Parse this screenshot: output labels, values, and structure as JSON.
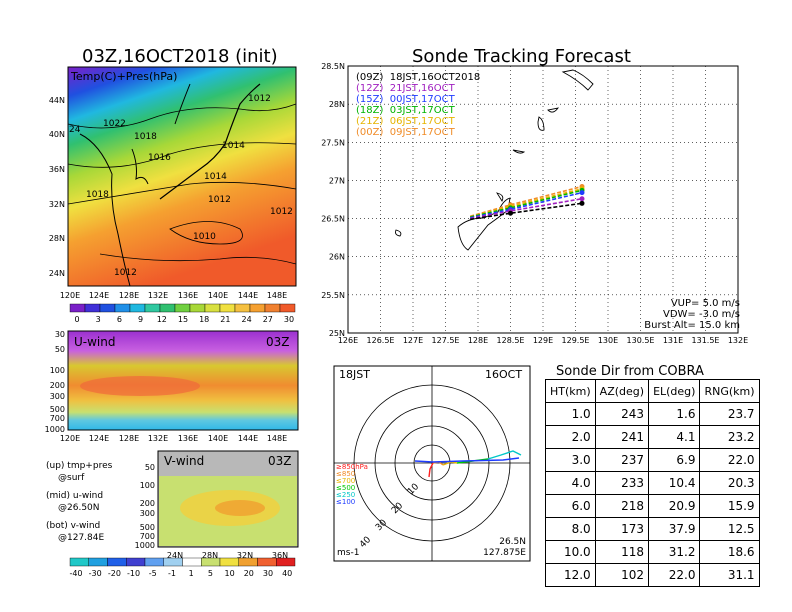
{
  "left_title": "03Z,16OCT2018 (init)",
  "map_panel": {
    "label": "Temp(C)+Pres(hPa)",
    "lat_labels": [
      "44N",
      "40N",
      "36N",
      "32N",
      "28N",
      "24N"
    ],
    "lon_labels": [
      "120E",
      "124E",
      "128E",
      "132E",
      "136E",
      "140E",
      "144E",
      "148E"
    ],
    "isobar_labels": [
      "1012",
      "1022",
      "1018",
      "1016",
      "1014",
      "1014",
      "1018",
      "1012",
      "1012",
      "1010",
      "1012"
    ],
    "partial_label": "24",
    "colorbar_ticks": [
      "0",
      "3",
      "6",
      "9",
      "12",
      "15",
      "18",
      "21",
      "24",
      "27",
      "30"
    ]
  },
  "uwind_panel": {
    "label": "U-wind",
    "time": "03Z",
    "p_labels": [
      "30",
      "50",
      "100",
      "200",
      "300",
      "500",
      "700",
      "1000"
    ],
    "lon_labels": [
      "120E",
      "124E",
      "128E",
      "132E",
      "136E",
      "140E",
      "144E",
      "148E"
    ]
  },
  "vwind_panel": {
    "label": "V-wind",
    "time": "03Z",
    "p_labels": [
      "50",
      "100",
      "200",
      "300",
      "500",
      "700",
      "1000"
    ],
    "lat_labels": [
      "24N",
      "28N",
      "32N",
      "36N"
    ]
  },
  "wind_colorbar_ticks": [
    "-40",
    "-30",
    "-20",
    "-10",
    "-5",
    "-1",
    "1",
    "5",
    "10",
    "20",
    "30",
    "40"
  ],
  "legend_notes": [
    [
      "(up) tmp+pres",
      "@surf"
    ],
    [
      "(mid) u-wind",
      "@26.50N"
    ],
    [
      "(bot) v-wind",
      "@127.84E"
    ]
  ],
  "forecast": {
    "title": "Sonde Tracking Forecast",
    "y_labels": [
      "28.5N",
      "28N",
      "27.5N",
      "27N",
      "26.5N",
      "26N",
      "25.5N",
      "25N"
    ],
    "x_labels": [
      "126E",
      "126.5E",
      "127E",
      "127.5E",
      "128E",
      "128.5E",
      "129E",
      "129.5E",
      "130E",
      "130.5E",
      "131E",
      "131.5E",
      "132E"
    ],
    "launches": [
      {
        "text": "(09Z)  18JST,16OCT2018",
        "color": "#000000"
      },
      {
        "text": "(12Z)  21JST,16OCT",
        "color": "#a020c0"
      },
      {
        "text": "(15Z)  00JST,17OCT",
        "color": "#1e3cff"
      },
      {
        "text": "(18Z)  03JST,17OCT",
        "color": "#00b400"
      },
      {
        "text": "(21Z)  06JST,17OCT",
        "color": "#e6b400"
      },
      {
        "text": "(00Z)  09JST,17OCT",
        "color": "#f08c28"
      }
    ],
    "params": [
      "VUP= 5.0 m/s",
      "VDW= -3.0 m/s",
      "Burst Alt= 15.0 km"
    ]
  },
  "polar": {
    "time_left": "18JST",
    "date_right": "16OCT",
    "ring_labels": [
      "10",
      "20",
      "30",
      "40"
    ],
    "unit": "ms-1",
    "loc_lat": "26.5N",
    "loc_lon": "127.875E",
    "level_legend": [
      {
        "text": "≥850hPa",
        "color": "#ff2020"
      },
      {
        "text": "≤850",
        "color": "#f08c28"
      },
      {
        "text": "≤700",
        "color": "#e6b400"
      },
      {
        "text": "≤500",
        "color": "#00c800"
      },
      {
        "text": "≤250",
        "color": "#00c8c8"
      },
      {
        "text": "≤100",
        "color": "#1e3cff"
      }
    ]
  },
  "cobra": {
    "title": "Sonde Dir from COBRA",
    "headers": [
      "HT(km)",
      "AZ(deg)",
      "EL(deg)",
      "RNG(km)"
    ],
    "rows": [
      [
        "1.0",
        "243",
        "1.6",
        "23.7"
      ],
      [
        "2.0",
        "241",
        "4.1",
        "23.2"
      ],
      [
        "3.0",
        "237",
        "6.9",
        "22.0"
      ],
      [
        "4.0",
        "233",
        "10.4",
        "20.3"
      ],
      [
        "6.0",
        "218",
        "20.9",
        "15.9"
      ],
      [
        "8.0",
        "173",
        "37.9",
        "12.5"
      ],
      [
        "10.0",
        "118",
        "31.2",
        "18.6"
      ],
      [
        "12.0",
        "102",
        "22.0",
        "31.1"
      ]
    ]
  },
  "chart_data": {
    "type": "line",
    "title": "Sonde Tracking Forecast",
    "xlabel": "",
    "ylabel": "",
    "xlim": [
      126,
      132
    ],
    "ylim": [
      25,
      28.5
    ],
    "series": [
      {
        "name": "(09Z)  18JST,16OCT2018",
        "color": "#000000",
        "x": [
          127.88,
          128.5,
          129.6
        ],
        "y": [
          26.49,
          26.57,
          26.7
        ]
      },
      {
        "name": "(12Z)  21JST,16OCT",
        "color": "#a020c0",
        "x": [
          127.88,
          128.5,
          129.6
        ],
        "y": [
          26.5,
          26.6,
          26.76
        ]
      },
      {
        "name": "(15Z)  00JST,17OCT",
        "color": "#1e3cff",
        "x": [
          127.88,
          128.5,
          129.6
        ],
        "y": [
          26.51,
          26.62,
          26.84
        ]
      },
      {
        "name": "(18Z)  03JST,17OCT",
        "color": "#00b400",
        "x": [
          127.88,
          128.5,
          129.6
        ],
        "y": [
          26.52,
          26.64,
          26.87
        ]
      },
      {
        "name": "(21Z)  06JST,17OCT",
        "color": "#e6b400",
        "x": [
          127.88,
          128.5,
          129.6
        ],
        "y": [
          26.52,
          26.66,
          26.89
        ]
      },
      {
        "name": "(00Z)  09JST,17OCT",
        "color": "#f08c28",
        "x": [
          127.88,
          128.5,
          129.6
        ],
        "y": [
          26.53,
          26.68,
          26.92
        ]
      }
    ]
  }
}
